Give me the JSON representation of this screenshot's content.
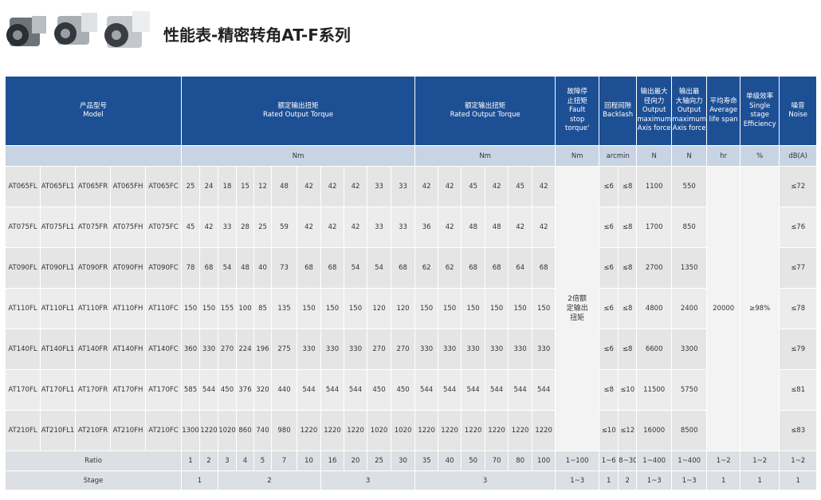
{
  "header": {
    "title": "性能表-精密转角AT-F系列"
  },
  "table": {
    "header": [
      {
        "lines": [
          "产品型号",
          "Model"
        ]
      },
      {
        "lines": [
          "额定输出扭矩",
          "Rated Output Torque"
        ]
      },
      {
        "lines": [
          "额定输出扭矩",
          "Rated Output Torque"
        ]
      },
      {
        "lines": [
          "故障停",
          "止扭矩",
          "Fault",
          "stop",
          "torque'"
        ]
      },
      {
        "lines": [
          "回程间隙",
          "Backlash"
        ]
      },
      {
        "lines": [
          "输出最大",
          "径向力",
          "Output",
          "maximum",
          "Axis force"
        ]
      },
      {
        "lines": [
          "输出最",
          "大轴向力",
          "Output",
          "maximum",
          "Axis force"
        ]
      },
      {
        "lines": [
          "平均寿命",
          "Average",
          "life span"
        ]
      },
      {
        "lines": [
          "单级效率",
          "Single",
          "stage",
          "Efficiency"
        ]
      },
      {
        "lines": [
          "噪音",
          "Noise"
        ]
      }
    ],
    "units": [
      "Nm",
      "Nm",
      "Nm",
      "arcmin",
      "N",
      "N",
      "hr",
      "%",
      "dB(A)"
    ],
    "rows": [
      {
        "models": [
          "AT065FL",
          "AT065FL1",
          "AT065FR",
          "AT065FH",
          "AT065FC"
        ],
        "torque": [
          25,
          24,
          18,
          15,
          12,
          48,
          42,
          42,
          42,
          33,
          33,
          42,
          42,
          45,
          42,
          45,
          42
        ],
        "backlash": [
          "≤6",
          "≤8"
        ],
        "radial": 1100,
        "axial": 550,
        "noise": "≤72"
      },
      {
        "models": [
          "AT075FL",
          "AT075FL1",
          "AT075FR",
          "AT075FH",
          "AT075FC"
        ],
        "torque": [
          45,
          42,
          33,
          28,
          25,
          59,
          42,
          42,
          42,
          33,
          33,
          36,
          42,
          48,
          48,
          42,
          42
        ],
        "backlash": [
          "≤6",
          "≤8"
        ],
        "radial": 1700,
        "axial": 850,
        "noise": "≤76"
      },
      {
        "models": [
          "AT090FL",
          "AT090FL1",
          "AT090FR",
          "AT090FH",
          "AT090FC"
        ],
        "torque": [
          78,
          68,
          54,
          48,
          40,
          73,
          68,
          68,
          54,
          54,
          68,
          62,
          62,
          68,
          68,
          64,
          68
        ],
        "backlash": [
          "≤6",
          "≤8"
        ],
        "radial": 2700,
        "axial": 1350,
        "noise": "≤77"
      },
      {
        "models": [
          "AT110FL",
          "AT110FL1",
          "AT110FR",
          "AT110FH",
          "AT110FC"
        ],
        "torque": [
          150,
          150,
          155,
          100,
          85,
          135,
          150,
          150,
          150,
          120,
          120,
          150,
          150,
          150,
          150,
          150,
          150
        ],
        "backlash": [
          "≤6",
          "≤8"
        ],
        "radial": 4800,
        "axial": 2400,
        "noise": "≤78"
      },
      {
        "models": [
          "AT140FL",
          "AT140FL1",
          "AT140FR",
          "AT140FH",
          "AT140FC"
        ],
        "torque": [
          360,
          330,
          270,
          224,
          196,
          275,
          330,
          330,
          330,
          270,
          270,
          330,
          330,
          330,
          330,
          330,
          330
        ],
        "backlash": [
          "≤6",
          "≤8"
        ],
        "radial": 6600,
        "axial": 3300,
        "noise": "≤79"
      },
      {
        "models": [
          "AT170FL",
          "AT170FL1",
          "AT170FR",
          "AT170FH",
          "AT170FC"
        ],
        "torque": [
          585,
          544,
          450,
          376,
          320,
          440,
          544,
          544,
          544,
          450,
          450,
          544,
          544,
          544,
          544,
          544,
          544
        ],
        "backlash": [
          "≤8",
          "≤10"
        ],
        "radial": 11500,
        "axial": 5750,
        "noise": "≤81"
      },
      {
        "models": [
          "AT210FL",
          "AT210FL1",
          "AT210FR",
          "AT210FH",
          "AT210FC"
        ],
        "torque": [
          1300,
          1220,
          1020,
          860,
          740,
          980,
          1220,
          1220,
          1220,
          1020,
          1020,
          1220,
          1220,
          1220,
          1220,
          1220,
          1220
        ],
        "backlash": [
          "≤10",
          "≤12"
        ],
        "radial": 16000,
        "axial": 8500,
        "noise": "≤83"
      }
    ],
    "fault_stop": "2倍额定输出扭矩",
    "life": 20000,
    "efficiency": "≥98%",
    "ratio": {
      "label": "Ratio",
      "values": [
        1,
        2,
        3,
        4,
        5,
        7,
        10,
        16,
        20,
        25,
        30,
        35,
        40,
        50,
        70,
        80,
        100
      ],
      "other": [
        "1~100",
        "1~6",
        "8~30",
        "1~400",
        "1~400",
        "1~2",
        "1~2",
        "1~2"
      ]
    },
    "stage": {
      "label": "Stage",
      "values": [
        "1",
        "2",
        "3",
        "3",
        "1~3",
        "1",
        "2",
        "1~3",
        "1~3",
        "1",
        "1",
        "1"
      ]
    }
  }
}
